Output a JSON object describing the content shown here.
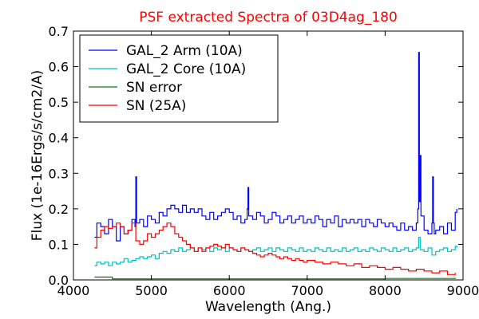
{
  "chart_data": {
    "type": "line",
    "title": "PSF extracted Spectra of 03D4ag_180",
    "title_color": "#ff0000",
    "xlabel": "Wavelength (Ang.)",
    "ylabel": "Flux (1e-16Ergs/s/cm2/A)",
    "xlim": [
      4000,
      9000
    ],
    "ylim": [
      0.0,
      0.7
    ],
    "xticks": [
      "4000",
      "5000",
      "6000",
      "7000",
      "8000",
      "9000"
    ],
    "yticks": [
      "0.0",
      "0.1",
      "0.2",
      "0.3",
      "0.4",
      "0.5",
      "0.6",
      "0.7"
    ],
    "grid": false,
    "legend_position": "top-left",
    "series": [
      {
        "name": "GAL_2 Arm (10A)",
        "color": "#0000ff",
        "step": 10,
        "x": [
          4270,
          4300,
          4350,
          4400,
          4450,
          4500,
          4550,
          4600,
          4650,
          4700,
          4750,
          4790,
          4800,
          4810,
          4850,
          4900,
          4950,
          5000,
          5050,
          5100,
          5150,
          5200,
          5250,
          5300,
          5350,
          5400,
          5450,
          5500,
          5550,
          5600,
          5650,
          5700,
          5750,
          5800,
          5850,
          5900,
          5950,
          6000,
          6050,
          6100,
          6150,
          6200,
          6230,
          6240,
          6250,
          6300,
          6350,
          6400,
          6450,
          6500,
          6550,
          6600,
          6650,
          6700,
          6750,
          6800,
          6850,
          6900,
          6950,
          7000,
          7050,
          7100,
          7150,
          7200,
          7250,
          7300,
          7350,
          7400,
          7450,
          7500,
          7550,
          7600,
          7650,
          7700,
          7750,
          7800,
          7850,
          7900,
          7950,
          8000,
          8050,
          8100,
          8150,
          8200,
          8250,
          8300,
          8350,
          8400,
          8420,
          8430,
          8440,
          8450,
          8460,
          8500,
          8550,
          8600,
          8610,
          8620,
          8630,
          8650,
          8700,
          8750,
          8800,
          8850,
          8900,
          8920
        ],
        "y": [
          0.12,
          0.16,
          0.15,
          0.13,
          0.17,
          0.15,
          0.11,
          0.15,
          0.13,
          0.14,
          0.17,
          0.15,
          0.29,
          0.16,
          0.17,
          0.15,
          0.18,
          0.17,
          0.16,
          0.19,
          0.18,
          0.2,
          0.21,
          0.2,
          0.19,
          0.21,
          0.19,
          0.2,
          0.19,
          0.2,
          0.18,
          0.17,
          0.19,
          0.17,
          0.18,
          0.19,
          0.2,
          0.19,
          0.17,
          0.18,
          0.16,
          0.17,
          0.2,
          0.26,
          0.18,
          0.17,
          0.19,
          0.18,
          0.16,
          0.17,
          0.19,
          0.18,
          0.16,
          0.17,
          0.18,
          0.16,
          0.17,
          0.18,
          0.16,
          0.17,
          0.16,
          0.18,
          0.17,
          0.15,
          0.17,
          0.16,
          0.18,
          0.15,
          0.17,
          0.16,
          0.17,
          0.16,
          0.17,
          0.15,
          0.17,
          0.16,
          0.15,
          0.17,
          0.16,
          0.15,
          0.16,
          0.15,
          0.14,
          0.16,
          0.14,
          0.15,
          0.14,
          0.16,
          0.2,
          0.64,
          0.22,
          0.35,
          0.18,
          0.14,
          0.13,
          0.16,
          0.29,
          0.16,
          0.13,
          0.14,
          0.15,
          0.13,
          0.16,
          0.14,
          0.19,
          0.2
        ]
      },
      {
        "name": "GAL_2 Core (10A)",
        "color": "#00bfbf",
        "step": 10,
        "x": [
          4270,
          4300,
          4350,
          4400,
          4450,
          4500,
          4550,
          4600,
          4650,
          4700,
          4750,
          4800,
          4850,
          4900,
          4950,
          5000,
          5050,
          5100,
          5150,
          5200,
          5250,
          5300,
          5350,
          5400,
          5450,
          5500,
          5550,
          5600,
          5650,
          5700,
          5750,
          5800,
          5850,
          5900,
          5950,
          6000,
          6050,
          6100,
          6150,
          6200,
          6250,
          6300,
          6350,
          6400,
          6450,
          6500,
          6550,
          6600,
          6650,
          6700,
          6750,
          6800,
          6850,
          6900,
          6950,
          7000,
          7050,
          7100,
          7150,
          7200,
          7250,
          7300,
          7350,
          7400,
          7450,
          7500,
          7550,
          7600,
          7650,
          7700,
          7750,
          7800,
          7850,
          7900,
          7950,
          8000,
          8050,
          8100,
          8150,
          8200,
          8250,
          8300,
          8350,
          8400,
          8430,
          8450,
          8500,
          8550,
          8600,
          8650,
          8700,
          8750,
          8800,
          8850,
          8900,
          8920
        ],
        "y": [
          0.04,
          0.05,
          0.045,
          0.05,
          0.04,
          0.05,
          0.045,
          0.05,
          0.06,
          0.05,
          0.055,
          0.06,
          0.065,
          0.06,
          0.065,
          0.07,
          0.06,
          0.075,
          0.08,
          0.075,
          0.085,
          0.08,
          0.09,
          0.08,
          0.085,
          0.09,
          0.08,
          0.09,
          0.085,
          0.09,
          0.08,
          0.09,
          0.085,
          0.09,
          0.08,
          0.09,
          0.085,
          0.08,
          0.09,
          0.085,
          0.08,
          0.085,
          0.09,
          0.08,
          0.085,
          0.09,
          0.08,
          0.09,
          0.085,
          0.08,
          0.09,
          0.085,
          0.08,
          0.09,
          0.08,
          0.085,
          0.08,
          0.09,
          0.085,
          0.08,
          0.09,
          0.08,
          0.085,
          0.08,
          0.09,
          0.08,
          0.085,
          0.09,
          0.08,
          0.085,
          0.08,
          0.09,
          0.085,
          0.08,
          0.09,
          0.085,
          0.08,
          0.09,
          0.08,
          0.085,
          0.09,
          0.08,
          0.085,
          0.09,
          0.12,
          0.085,
          0.08,
          0.09,
          0.07,
          0.08,
          0.085,
          0.09,
          0.08,
          0.085,
          0.095,
          0.09
        ]
      },
      {
        "name": "SN error",
        "color": "#008000",
        "step": 10,
        "x": [
          4270,
          4500,
          5000,
          5500,
          6000,
          6500,
          7000,
          7500,
          8000,
          8500,
          8900
        ],
        "y": [
          0.008,
          0.003,
          0.003,
          0.003,
          0.003,
          0.003,
          0.003,
          0.003,
          0.004,
          0.004,
          0.006
        ]
      },
      {
        "name": "SN (25A)",
        "color": "#ff0000",
        "step": 25,
        "x": [
          4270,
          4300,
          4350,
          4400,
          4450,
          4500,
          4550,
          4600,
          4650,
          4700,
          4750,
          4800,
          4850,
          4900,
          4950,
          5000,
          5050,
          5100,
          5150,
          5200,
          5250,
          5300,
          5350,
          5400,
          5450,
          5500,
          5550,
          5600,
          5650,
          5700,
          5750,
          5800,
          5850,
          5900,
          5950,
          6000,
          6050,
          6100,
          6150,
          6200,
          6250,
          6300,
          6350,
          6400,
          6450,
          6500,
          6550,
          6600,
          6650,
          6700,
          6750,
          6800,
          6850,
          6900,
          6950,
          7000,
          7100,
          7200,
          7300,
          7400,
          7500,
          7600,
          7700,
          7800,
          7900,
          8000,
          8100,
          8200,
          8300,
          8400,
          8500,
          8600,
          8700,
          8800,
          8900
        ],
        "y": [
          0.09,
          0.12,
          0.14,
          0.15,
          0.145,
          0.15,
          0.16,
          0.15,
          0.13,
          0.14,
          0.16,
          0.11,
          0.1,
          0.11,
          0.13,
          0.12,
          0.13,
          0.14,
          0.15,
          0.16,
          0.15,
          0.13,
          0.12,
          0.11,
          0.1,
          0.09,
          0.08,
          0.09,
          0.08,
          0.09,
          0.095,
          0.1,
          0.095,
          0.09,
          0.1,
          0.09,
          0.085,
          0.08,
          0.09,
          0.085,
          0.08,
          0.075,
          0.07,
          0.065,
          0.07,
          0.075,
          0.07,
          0.065,
          0.06,
          0.065,
          0.06,
          0.055,
          0.06,
          0.055,
          0.05,
          0.055,
          0.05,
          0.045,
          0.05,
          0.045,
          0.04,
          0.045,
          0.035,
          0.04,
          0.035,
          0.03,
          0.035,
          0.03,
          0.025,
          0.03,
          0.025,
          0.02,
          0.025,
          0.015,
          0.02
        ]
      }
    ]
  }
}
